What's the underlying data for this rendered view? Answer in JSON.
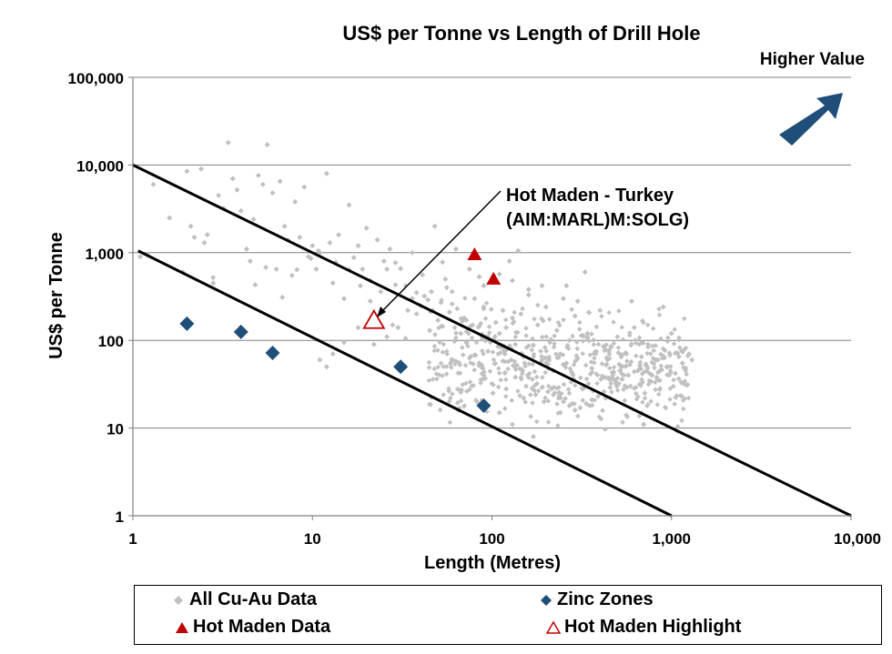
{
  "chart_data": {
    "type": "scatter",
    "title": "US$ per Tonne vs Length of Drill Hole",
    "corner_label": "Higher Value",
    "xlabel": "Length (Metres)",
    "ylabel": "US$ per Tonne",
    "x_scale": "log",
    "y_scale": "log",
    "xlim": [
      1,
      10000
    ],
    "ylim": [
      1,
      100000
    ],
    "x_ticks": [
      1,
      10,
      100,
      1000,
      10000
    ],
    "x_tick_labels": [
      "1",
      "10",
      "100",
      "1,000",
      "10,000"
    ],
    "y_ticks": [
      1,
      10,
      100,
      1000,
      10000,
      100000
    ],
    "y_tick_labels": [
      "1",
      "10",
      "100",
      "1,000",
      "10,000",
      "100,000"
    ],
    "grid": "horizontal",
    "annotation": {
      "lines": [
        "Hot Maden - Turkey",
        "(AIM:MARL)M:SOLG)"
      ],
      "points_to": [
        22,
        160
      ]
    },
    "reference_lines": [
      {
        "name": "upper",
        "from": [
          1,
          10000
        ],
        "to": [
          10000,
          1
        ]
      },
      {
        "name": "lower",
        "from": [
          1.07,
          1050
        ],
        "to": [
          1000,
          1
        ]
      }
    ],
    "series": [
      {
        "name": "All Cu-Au Data",
        "marker": "diamond",
        "color": "#c0c0c0",
        "points": [
          [
            1.1,
            900
          ],
          [
            1.3,
            6000
          ],
          [
            1.6,
            2500
          ],
          [
            1.9,
            600
          ],
          [
            2,
            8500
          ],
          [
            2.1,
            2000
          ],
          [
            2.2,
            1500
          ],
          [
            2.4,
            9000
          ],
          [
            2.5,
            1300
          ],
          [
            2.6,
            1600
          ],
          [
            2.8,
            450
          ],
          [
            3,
            4500
          ],
          [
            3.2,
            3200
          ],
          [
            3.4,
            18000
          ],
          [
            3.6,
            7000
          ],
          [
            3.8,
            5200
          ],
          [
            4,
            3000
          ],
          [
            4.3,
            1100
          ],
          [
            4.5,
            800
          ],
          [
            4.7,
            2400
          ],
          [
            5,
            7600
          ],
          [
            5.3,
            6000
          ],
          [
            5.6,
            17000
          ],
          [
            6,
            4800
          ],
          [
            6.3,
            650
          ],
          [
            6.6,
            6500
          ],
          [
            7,
            2000
          ],
          [
            7.3,
            1400
          ],
          [
            7.7,
            550
          ],
          [
            8,
            3800
          ],
          [
            8.5,
            1500
          ],
          [
            9,
            5600
          ],
          [
            9.5,
            900
          ],
          [
            10,
            1200
          ],
          [
            10.5,
            650
          ],
          [
            11,
            1000
          ],
          [
            12,
            8000
          ],
          [
            12.5,
            1300
          ],
          [
            13,
            450
          ],
          [
            14,
            1600
          ],
          [
            15,
            300
          ],
          [
            16,
            3500
          ],
          [
            17,
            880
          ],
          [
            18,
            1200
          ],
          [
            19,
            650
          ],
          [
            20,
            1900
          ],
          [
            21,
            480
          ],
          [
            23,
            1400
          ],
          [
            25,
            800
          ],
          [
            27,
            1100
          ],
          [
            29,
            430
          ],
          [
            31,
            660
          ],
          [
            34,
            220
          ],
          [
            36,
            1000
          ],
          [
            38,
            350
          ],
          [
            41,
            560
          ],
          [
            44,
            290
          ],
          [
            48,
            2000
          ],
          [
            50,
            170
          ],
          [
            53,
            780
          ],
          [
            56,
            400
          ],
          [
            60,
            260
          ],
          [
            63,
            1100
          ],
          [
            67,
            120
          ],
          [
            70,
            180
          ],
          [
            75,
            650
          ],
          [
            80,
            300
          ],
          [
            85,
            145
          ],
          [
            90,
            230
          ],
          [
            95,
            110
          ],
          [
            100,
            470
          ],
          [
            105,
            160
          ],
          [
            110,
            120
          ],
          [
            115,
            220
          ],
          [
            120,
            140
          ],
          [
            125,
            800
          ],
          [
            130,
            180
          ],
          [
            135,
            90
          ],
          [
            140,
            1050
          ],
          [
            145,
            200
          ],
          [
            150,
            65
          ],
          [
            160,
            330
          ],
          [
            170,
            88
          ],
          [
            180,
            150
          ],
          [
            190,
            60
          ],
          [
            200,
            240
          ],
          [
            210,
            95
          ],
          [
            220,
            45
          ],
          [
            230,
            130
          ],
          [
            240,
            70
          ],
          [
            250,
            300
          ],
          [
            260,
            55
          ],
          [
            270,
            100
          ],
          [
            280,
            42
          ],
          [
            290,
            190
          ],
          [
            300,
            62
          ],
          [
            320,
            28
          ],
          [
            340,
            120
          ],
          [
            360,
            48
          ],
          [
            380,
            75
          ],
          [
            400,
            220
          ],
          [
            420,
            38
          ],
          [
            440,
            60
          ],
          [
            460,
            85
          ],
          [
            480,
            35
          ],
          [
            500,
            110
          ],
          [
            530,
            50
          ],
          [
            560,
            70
          ],
          [
            590,
            30
          ],
          [
            620,
            140
          ],
          [
            650,
            45
          ],
          [
            680,
            65
          ],
          [
            710,
            25
          ],
          [
            740,
            90
          ],
          [
            780,
            40
          ],
          [
            820,
            60
          ],
          [
            860,
            35
          ],
          [
            900,
            80
          ],
          [
            950,
            50
          ],
          [
            1000,
            120
          ],
          [
            1050,
            42
          ],
          [
            1100,
            65
          ],
          [
            1150,
            55
          ],
          [
            1200,
            48
          ],
          [
            1250,
            70
          ],
          [
            1300,
            60
          ],
          [
            900,
            240
          ],
          [
            600,
            280
          ],
          [
            330,
            600
          ],
          [
            300,
            280
          ],
          [
            260,
            420
          ],
          [
            190,
            420
          ],
          [
            160,
            380
          ],
          [
            130,
            480
          ],
          [
            110,
            570
          ],
          [
            90,
            420
          ],
          [
            85,
            530
          ],
          [
            60,
            360
          ],
          [
            55,
            500
          ],
          [
            42,
            320
          ],
          [
            38,
            200
          ],
          [
            30,
            140
          ],
          [
            26,
            110
          ],
          [
            22,
            90
          ],
          [
            18,
            140
          ],
          [
            15,
            95
          ],
          [
            13,
            70
          ],
          [
            12,
            50
          ],
          [
            11,
            60
          ],
          [
            28,
            150
          ],
          [
            33,
            105
          ],
          [
            45,
            130
          ],
          [
            62,
            140
          ],
          [
            72,
            95
          ],
          [
            95,
            75
          ],
          [
            115,
            58
          ],
          [
            135,
            38
          ],
          [
            155,
            30
          ],
          [
            175,
            24
          ],
          [
            195,
            20
          ],
          [
            215,
            28
          ],
          [
            240,
            15
          ],
          [
            280,
            19
          ],
          [
            350,
            18
          ],
          [
            430,
            22
          ],
          [
            560,
            14
          ],
          [
            700,
            11
          ],
          [
            150,
            22
          ],
          [
            120,
            28
          ],
          [
            100,
            32
          ],
          [
            90,
            40
          ],
          [
            85,
            55
          ],
          [
            80,
            68
          ],
          [
            130,
            11
          ],
          [
            170,
            8
          ],
          [
            110,
            15
          ],
          [
            1.2,
            950
          ],
          [
            2.8,
            520
          ],
          [
            4.8,
            430
          ],
          [
            5.5,
            680
          ],
          [
            6.8,
            310
          ],
          [
            8.2,
            640
          ],
          [
            9.8,
            860
          ],
          [
            10.8,
            1050
          ],
          [
            13.5,
            780
          ],
          [
            16,
            640
          ],
          [
            18.5,
            420
          ],
          [
            21,
            280
          ],
          [
            24,
            360
          ],
          [
            26,
            650
          ],
          [
            29,
            770
          ],
          [
            33,
            420
          ],
          [
            36,
            300
          ],
          [
            40,
            250
          ],
          [
            46,
            360
          ],
          [
            52,
            270
          ],
          [
            58,
            210
          ],
          [
            64,
            230
          ],
          [
            72,
            170
          ],
          [
            78,
            150
          ],
          [
            88,
            110
          ],
          [
            98,
            95
          ],
          [
            108,
            85
          ],
          [
            118,
            70
          ],
          [
            128,
            60
          ],
          [
            138,
            52
          ],
          [
            148,
            45
          ],
          [
            158,
            40
          ],
          [
            168,
            36
          ],
          [
            178,
            32
          ],
          [
            190,
            29
          ],
          [
            205,
            26
          ],
          [
            220,
            24
          ],
          [
            235,
            22
          ],
          [
            250,
            20
          ],
          [
            270,
            18
          ],
          [
            290,
            16
          ],
          [
            310,
            17
          ],
          [
            335,
            19
          ],
          [
            360,
            21
          ],
          [
            390,
            23
          ],
          [
            420,
            26
          ],
          [
            455,
            29
          ],
          [
            490,
            32
          ],
          [
            530,
            36
          ],
          [
            575,
            40
          ],
          [
            620,
            44
          ],
          [
            670,
            48
          ],
          [
            720,
            52
          ],
          [
            780,
            56
          ],
          [
            840,
            60
          ],
          [
            910,
            64
          ],
          [
            980,
            68
          ],
          [
            1060,
            72
          ],
          [
            1140,
            76
          ]
        ],
        "fill_cloud": true
      },
      {
        "name": "Zinc Zones",
        "marker": "diamond",
        "color": "#1f4e79",
        "points": [
          [
            2,
            155
          ],
          [
            4,
            125
          ],
          [
            6,
            72
          ],
          [
            31,
            50
          ],
          [
            90,
            18
          ]
        ]
      },
      {
        "name": "Hot Maden Data",
        "marker": "triangle",
        "color": "#c00000",
        "points": [
          [
            80,
            950
          ],
          [
            102,
            500
          ]
        ]
      },
      {
        "name": "Hot Maden Highlight",
        "marker": "triangle-open",
        "color": "#c00000",
        "points": [
          [
            22,
            160
          ]
        ]
      }
    ],
    "legend": {
      "position": "bottom",
      "entries": [
        "All Cu-Au Data",
        "Zinc Zones",
        "Hot Maden Data",
        "Hot Maden Highlight"
      ]
    }
  },
  "colors": {
    "accent_arrow": "#1f4e79",
    "grid": "#808080"
  }
}
